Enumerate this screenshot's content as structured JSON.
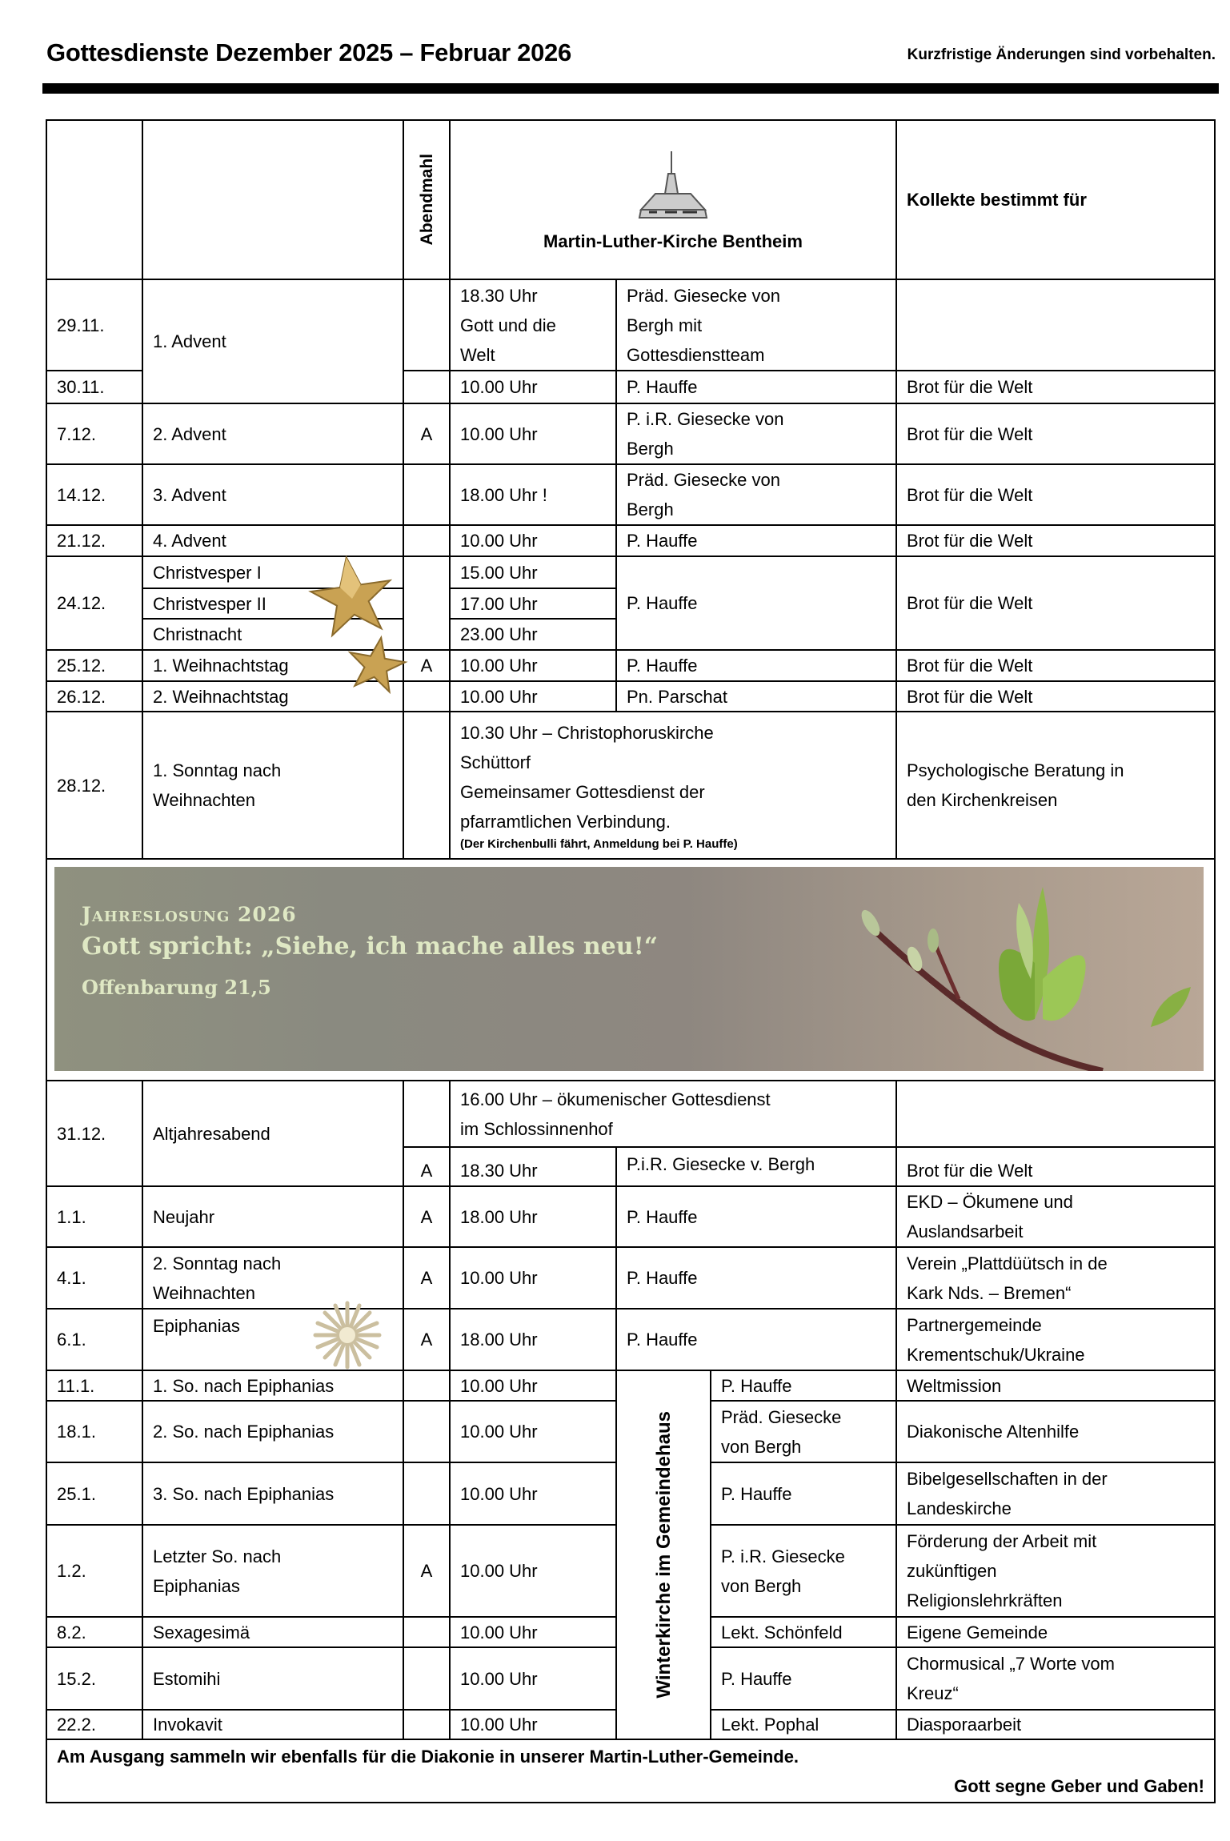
{
  "header": {
    "title": "Gottesdienste Dezember 2025 – Februar 2026",
    "notice": "Kurzfristige Änderungen sind vorbehalten."
  },
  "table_header": {
    "abendmahl": "Abendmahl",
    "church": "Martin-Luther-Kirche Bentheim",
    "kollekte": "Kollekte bestimmt für",
    "church_icon": "church-drawing-icon"
  },
  "rows": [
    {
      "date": "29.11.",
      "name": "1. Advent",
      "time": "18.30 Uhr\nGott und die\nWelt",
      "person": "Präd. Giesecke von\nBergh mit\nGottesdienstteam",
      "kollekte": ""
    },
    {
      "date": "30.11.",
      "time": "10.00 Uhr",
      "person": "P. Hauffe",
      "kollekte": "Brot für die Welt"
    },
    {
      "date": "7.12.",
      "name": "2. Advent",
      "abendmahl": "A",
      "time": "10.00 Uhr",
      "person": "P. i.R. Giesecke von\nBergh",
      "kollekte": "Brot für die Welt"
    },
    {
      "date": "14.12.",
      "name": "3. Advent",
      "time": "18.00 Uhr !",
      "person": "Präd. Giesecke von\nBergh",
      "kollekte": "Brot für die Welt"
    },
    {
      "date": "21.12.",
      "name": "4. Advent",
      "time": "10.00 Uhr",
      "person": "P. Hauffe",
      "kollekte": "Brot für die Welt"
    },
    {
      "date": "24.12.",
      "names": [
        "Christvesper I",
        "Christvesper II",
        "Christnacht"
      ],
      "times": [
        "15.00 Uhr",
        "17.00 Uhr",
        "23.00 Uhr"
      ],
      "person": "P. Hauffe",
      "kollekte": "Brot für die Welt"
    },
    {
      "date": "25.12.",
      "name": "1. Weihnachtstag",
      "abendmahl": "A",
      "time": "10.00 Uhr",
      "person": "P. Hauffe",
      "kollekte": "Brot für die Welt"
    },
    {
      "date": "26.12.",
      "name": "2. Weihnachtstag",
      "time": "10.00 Uhr",
      "person": "Pn. Parschat",
      "kollekte": "Brot für die Welt"
    },
    {
      "date": "28.12.",
      "name": "1. Sonntag nach\nWeihnachten",
      "service": "10.30 Uhr – Christophoruskirche\nSchüttorf\nGemeinsamer Gottesdienst der\npfarramtlichen Verbindung.",
      "note": "(Der Kirchenbulli fährt, Anmeldung bei P. Hauffe)",
      "kollekte": "Psychologische Beratung in\nden Kirchenkreisen"
    },
    {
      "date": "31.12.",
      "name": "Altjahresabend",
      "service": "16.00 Uhr – ökumenischer Gottesdienst\nim Schlossinnenhof",
      "abendmahl": "A",
      "time": "18.30 Uhr",
      "person": "P.i.R. Giesecke v. Bergh",
      "kollekte": "Brot für die Welt"
    },
    {
      "date": "1.1.",
      "name": "Neujahr",
      "abendmahl": "A",
      "time": "18.00 Uhr",
      "person": "P. Hauffe",
      "kollekte": "EKD – Ökumene und\nAuslandsarbeit"
    },
    {
      "date": "4.1.",
      "name": "2. Sonntag nach\nWeihnachten",
      "abendmahl": "A",
      "time": "10.00 Uhr",
      "person": "P. Hauffe",
      "kollekte": "Verein „Plattdüütsch in de\nKark Nds. – Bremen“"
    },
    {
      "date": "6.1.",
      "name": "Epiphanias",
      "abendmahl": "A",
      "time": "18.00 Uhr",
      "person": "P. Hauffe",
      "kollekte": "Partnergemeinde\nKrementschuk/Ukraine"
    },
    {
      "date": "11.1.",
      "name": "1. So. nach Epiphanias",
      "time": "10.00 Uhr",
      "person": "P. Hauffe",
      "kollekte": "Weltmission"
    },
    {
      "date": "18.1.",
      "name": "2. So. nach Epiphanias",
      "time": "10.00 Uhr",
      "person": "Präd. Giesecke\nvon Bergh",
      "kollekte": "Diakonische Altenhilfe"
    },
    {
      "date": "25.1.",
      "name": "3. So. nach Epiphanias",
      "time": "10.00 Uhr",
      "person": "P. Hauffe",
      "kollekte": "Bibelgesellschaften in der\nLandeskirche"
    },
    {
      "date": "1.2.",
      "name": "Letzter So. nach\nEpiphanias",
      "abendmahl": "A",
      "time": "10.00 Uhr",
      "person": "P. i.R. Giesecke\nvon Bergh",
      "kollekte": "Förderung der Arbeit mit\nzukünftigen\nReligionslehrkräften"
    },
    {
      "date": "8.2.",
      "name": "Sexagesimä",
      "time": "10.00 Uhr",
      "person": "Lekt. Schönfeld",
      "kollekte": "Eigene Gemeinde"
    },
    {
      "date": "15.2.",
      "name": "Estomihi",
      "time": "10.00 Uhr",
      "person": "P. Hauffe",
      "kollekte": "Chormusical „7 Worte vom\nKreuz“"
    },
    {
      "date": "22.2.",
      "name": "Invokavit",
      "time": "10.00 Uhr",
      "person": "Lekt. Pophal",
      "kollekte": "Diasporaarbeit"
    }
  ],
  "winterkirche": "Winterkirche im Gemeindehaus",
  "banner": {
    "label": "Jahreslosung 2026",
    "quote": "Gott spricht: „Siehe, ich mache alles neu!“",
    "reference": "Offenbarung 21,5",
    "text_color": "#dfe8c4"
  },
  "footer": {
    "line1": "Am Ausgang sammeln wir ebenfalls für die Diakonie in unserer Martin-Luther-Gemeinde.",
    "line2": "Gott segne Geber und Gaben!"
  },
  "decorations": [
    "gold-star-icon",
    "gold-star-icon",
    "herrnhut-star-icon"
  ]
}
